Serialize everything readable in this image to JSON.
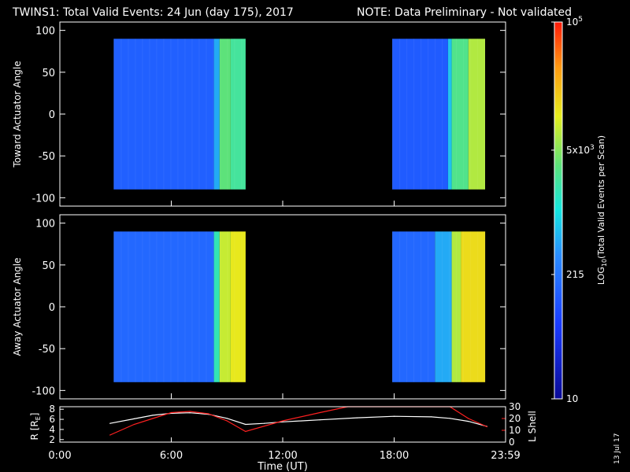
{
  "header": {
    "title": "TWINS1: Total Valid Events: 24 Jun (day 175), 2017",
    "note": "NOTE: Data Preliminary - Not validated",
    "note_color": "#ff2020"
  },
  "footer": {
    "date_stamp": "13 Jul 17"
  },
  "chart_data": [
    {
      "type": "heatmap",
      "name": "toward",
      "ylabel": "Toward Actuator Angle",
      "ylim": [
        -110,
        110
      ],
      "yticks": [
        "100",
        "50",
        "0",
        "-50",
        "-100"
      ],
      "angle_range": [
        -90,
        90
      ],
      "data_blocks": [
        {
          "start_hour": 2.9,
          "end_hour": 10.0,
          "bands": [
            {
              "from": 2.9,
              "to": 8.3,
              "level": 0.28
            },
            {
              "from": 8.3,
              "to": 8.6,
              "level": 0.42
            },
            {
              "from": 8.6,
              "to": 9.2,
              "level": 0.62
            },
            {
              "from": 9.2,
              "to": 10.0,
              "level": 0.58
            }
          ]
        },
        {
          "start_hour": 17.9,
          "end_hour": 22.9,
          "bands": [
            {
              "from": 17.9,
              "to": 20.9,
              "level": 0.27
            },
            {
              "from": 20.9,
              "to": 21.1,
              "level": 0.45
            },
            {
              "from": 21.1,
              "to": 22.0,
              "level": 0.6
            },
            {
              "from": 22.0,
              "to": 22.9,
              "level": 0.7
            }
          ]
        }
      ]
    },
    {
      "type": "heatmap",
      "name": "away",
      "ylabel": "Away Actuator Angle",
      "ylim": [
        -110,
        110
      ],
      "yticks": [
        "100",
        "50",
        "0",
        "-50",
        "-100"
      ],
      "angle_range": [
        -90,
        90
      ],
      "data_blocks": [
        {
          "start_hour": 2.9,
          "end_hour": 10.0,
          "bands": [
            {
              "from": 2.9,
              "to": 8.3,
              "level": 0.3
            },
            {
              "from": 8.3,
              "to": 8.6,
              "level": 0.55
            },
            {
              "from": 8.6,
              "to": 9.2,
              "level": 0.72
            },
            {
              "from": 9.2,
              "to": 10.0,
              "level": 0.76
            }
          ]
        },
        {
          "start_hour": 17.9,
          "end_hour": 22.9,
          "bands": [
            {
              "from": 17.9,
              "to": 20.2,
              "level": 0.3
            },
            {
              "from": 20.2,
              "to": 21.1,
              "level": 0.42
            },
            {
              "from": 21.1,
              "to": 21.6,
              "level": 0.7
            },
            {
              "from": 21.6,
              "to": 22.9,
              "level": 0.78
            }
          ]
        }
      ]
    },
    {
      "type": "line",
      "name": "orbit",
      "ylabel_left": "R [R",
      "ylabel_left_sub": "E",
      "ylabel_left_end": "]",
      "ylabel_right": "L Shell",
      "ylim_left": [
        1.5,
        8.5
      ],
      "ylim_right": [
        0,
        30
      ],
      "yticks_left": [
        "8",
        "6",
        "4",
        "2"
      ],
      "yticks_right": [
        "30",
        "20",
        "10",
        "0"
      ],
      "xlim": [
        0,
        24
      ],
      "xticks": [
        {
          "hour": 0,
          "label": "0:00"
        },
        {
          "hour": 6,
          "label": "6:00"
        },
        {
          "hour": 12,
          "label": "12:00"
        },
        {
          "hour": 18,
          "label": "18:00"
        },
        {
          "hour": 24,
          "label": "23:59"
        }
      ],
      "xlabel": "Time (UT)",
      "series": [
        {
          "color": "#ffffff",
          "x": [
            2.7,
            4.0,
            5.0,
            6.0,
            7.0,
            8.0,
            9.0,
            10.0,
            11.0,
            12.0,
            14.0,
            16.0,
            18.0,
            20.0,
            21.0,
            22.0,
            23.0
          ],
          "y": [
            5.2,
            6.1,
            6.8,
            7.2,
            7.3,
            7.0,
            6.2,
            5.0,
            5.2,
            5.5,
            5.9,
            6.3,
            6.6,
            6.5,
            6.2,
            5.6,
            4.6
          ]
        },
        {
          "color": "#ff2020",
          "axis": "right",
          "x": [
            2.7,
            4.0,
            5.0,
            6.0,
            7.0,
            8.0,
            9.0,
            10.0,
            12.0,
            14.0,
            15.5,
            21.0,
            22.0,
            23.0
          ],
          "y": [
            6,
            15,
            20,
            25,
            26,
            24,
            18,
            9,
            18,
            25,
            30,
            30,
            20,
            13
          ]
        }
      ]
    }
  ],
  "colorbar": {
    "label_prefix": "LOG",
    "label_sub": "10",
    "label_rest": "(Total Valid Events per Scan)",
    "ticks": [
      {
        "base": "10",
        "exp": "5",
        "pos": 1.0
      },
      {
        "base": "5x10",
        "exp": "3",
        "pos": 0.66
      },
      {
        "base": "215",
        "exp": "",
        "pos": 0.33
      },
      {
        "base": "10",
        "exp": "",
        "pos": 0.0
      }
    ]
  }
}
